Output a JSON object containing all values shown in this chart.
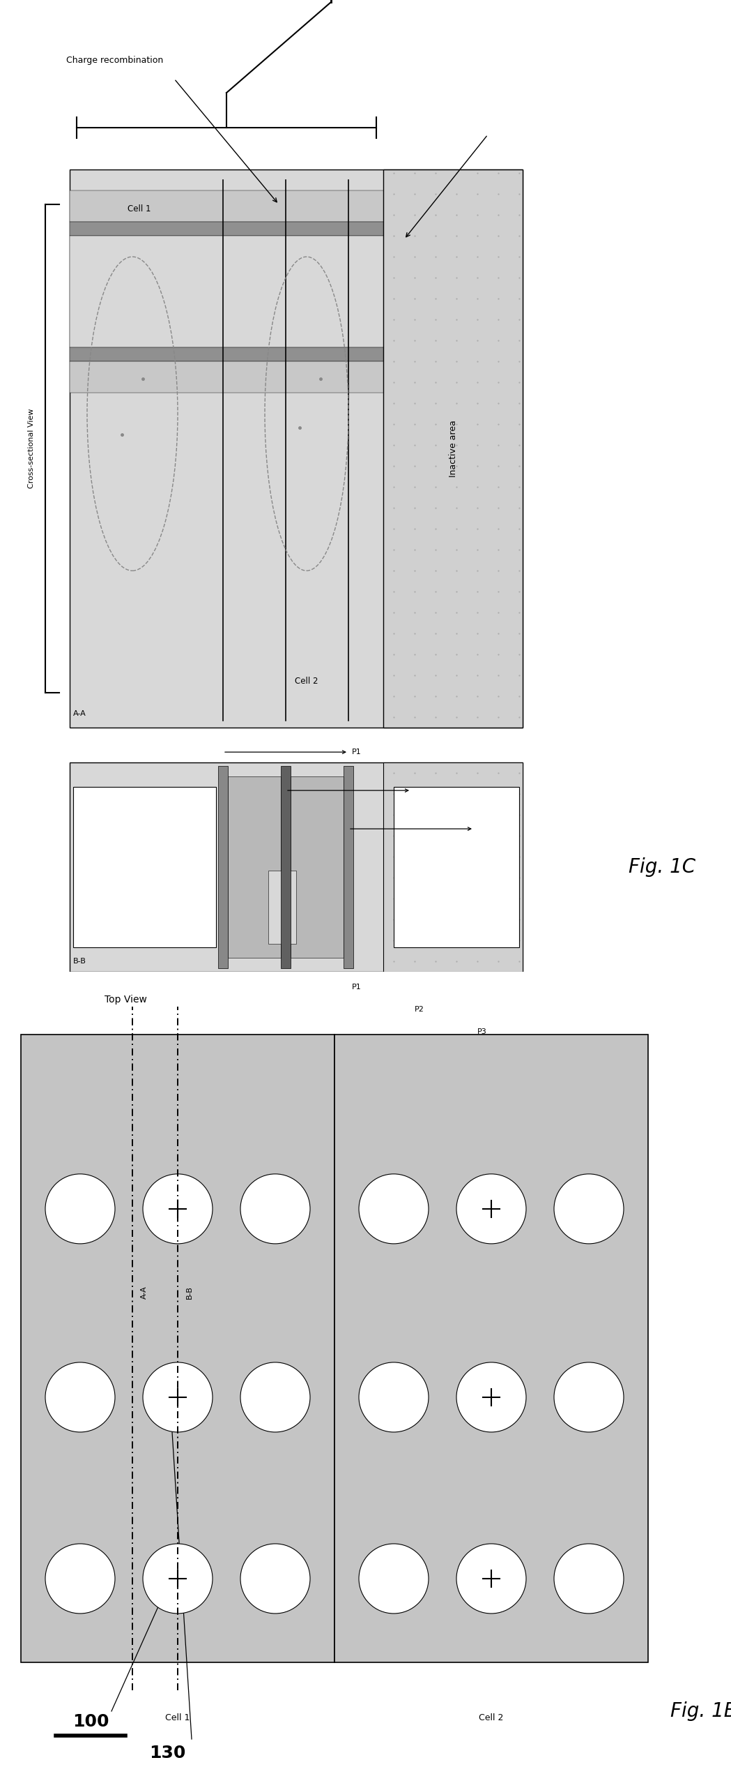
{
  "fig_width": 10.49,
  "fig_height": 25.33,
  "bg": "#ffffff",
  "black": "#000000",
  "gray_light": "#d8d8d8",
  "gray_med": "#b8b8b8",
  "gray_dark": "#888888",
  "gray_inactive": "#d0d0d0",
  "gray_cell": "#c4c4c4",
  "white": "#ffffff",
  "layer_white": "#f0f0f0",
  "layer_light": "#c8c8c8",
  "layer_mid": "#909090",
  "layer_dark": "#606060",
  "layer_med2": "#a8a8a8"
}
